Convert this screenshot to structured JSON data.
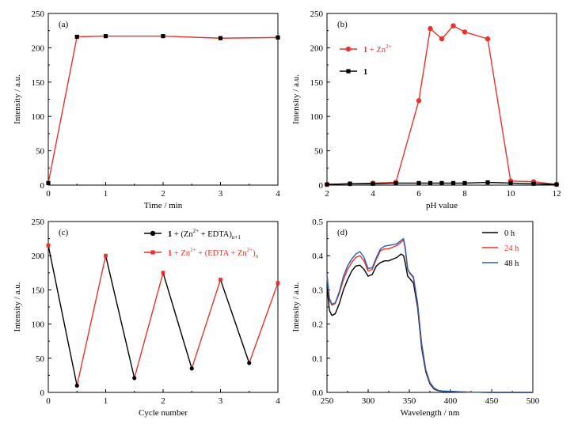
{
  "chart_data": [
    {
      "panel_label": "(a)",
      "type": "line",
      "xlabel": "Time / min",
      "ylabel": "Intensity / a.u.",
      "xlim": [
        0,
        4
      ],
      "ylim": [
        0,
        250
      ],
      "xticks": [
        "0",
        "1",
        "2",
        "3",
        "4"
      ],
      "yticks": [
        "0",
        "50",
        "100",
        "150",
        "200",
        "250"
      ],
      "series": [
        {
          "color": "#e8322b",
          "marker": "square",
          "marker_color": "#000000",
          "x": [
            0,
            0.5,
            1,
            2,
            3,
            4
          ],
          "y": [
            3,
            216,
            217,
            217,
            214,
            215
          ]
        }
      ]
    },
    {
      "panel_label": "(b)",
      "type": "line",
      "xlabel": "pH value",
      "ylabel": "Intensity / a.u.",
      "xlim": [
        2,
        12
      ],
      "ylim": [
        0,
        250
      ],
      "xticks": [
        "2",
        "4",
        "6",
        "8",
        "10",
        "12"
      ],
      "yticks": [
        "0",
        "50",
        "100",
        "150",
        "200",
        "250"
      ],
      "legend": {
        "placement": "upper-left",
        "items": [
          {
            "bold": "1",
            "rest": " + Zn",
            "sup": "2+",
            "color": "#e8322b",
            "marker": "circle"
          },
          {
            "bold": "1",
            "rest": "",
            "sup": "",
            "color": "#000000",
            "marker": "square"
          }
        ]
      },
      "series": [
        {
          "name": "1 + Zn2+",
          "color": "#e8322b",
          "marker": "circle",
          "x": [
            2,
            3,
            4,
            5,
            6,
            6.5,
            7,
            7.5,
            8,
            9,
            10,
            11,
            12
          ],
          "y": [
            1,
            2,
            3,
            4,
            123,
            228,
            213,
            232,
            223,
            213,
            6,
            5,
            1
          ]
        },
        {
          "name": "1",
          "color": "#000000",
          "marker": "square",
          "x": [
            2,
            3,
            4,
            5,
            6,
            6.5,
            7,
            7.5,
            8,
            9,
            10,
            11,
            12
          ],
          "y": [
            1,
            2,
            2,
            3,
            3,
            3,
            3,
            3,
            3,
            4,
            3,
            2,
            1
          ]
        }
      ]
    },
    {
      "panel_label": "(c)",
      "type": "line",
      "xlabel": "Cycle number",
      "ylabel": "Intensity / a.u.",
      "xlim": [
        0,
        4
      ],
      "ylim": [
        0,
        250
      ],
      "xticks": [
        "0",
        "1",
        "2",
        "3",
        "4"
      ],
      "yticks": [
        "0",
        "50",
        "100",
        "150",
        "200",
        "250"
      ],
      "legend": {
        "placement": "upper-right",
        "items": [
          {
            "bold": "1",
            "rest": " + (Zn",
            "sup": "2+",
            "rest2": " + EDTA)",
            "sub": "n+1",
            "color": "#000000",
            "marker": "circle"
          },
          {
            "bold": "1",
            "rest": " + Zn",
            "sup": "2+",
            "rest2": " + (EDTA + Zn",
            "sup2": "2+",
            "rest3": ")",
            "sub": "n",
            "color": "#e8322b",
            "marker": "square"
          }
        ]
      },
      "x": [
        0,
        0.5,
        1,
        1.5,
        2,
        2.5,
        3,
        3.5,
        4
      ],
      "y": [
        215,
        10,
        200,
        21,
        175,
        35,
        165,
        43,
        160
      ],
      "falling_color": "#000000",
      "rising_color": "#e8322b"
    },
    {
      "panel_label": "(d)",
      "type": "line",
      "xlabel": "Wavelength / nm",
      "ylabel": "Intensity / a.u.",
      "xlim": [
        250,
        500
      ],
      "ylim": [
        0,
        0.5
      ],
      "xticks": [
        "250",
        "300",
        "350",
        "400",
        "450",
        "500"
      ],
      "yticks": [
        "0.0",
        "0.1",
        "0.2",
        "0.3",
        "0.4",
        "0.5"
      ],
      "legend": {
        "placement": "upper-right",
        "items": [
          {
            "label": "0 h",
            "color": "#000000"
          },
          {
            "label": "24 h",
            "color": "#e8322b"
          },
          {
            "label": "48 h",
            "color": "#2e5eab"
          }
        ]
      },
      "series": [
        {
          "name": "0 h",
          "color": "#000000",
          "x": [
            250,
            253,
            256,
            260,
            265,
            270,
            275,
            280,
            285,
            290,
            295,
            300,
            305,
            310,
            315,
            320,
            325,
            330,
            335,
            340,
            343,
            345,
            348,
            350,
            355,
            360,
            365,
            370,
            375,
            380,
            385,
            390,
            400,
            420,
            450,
            500
          ],
          "y": [
            0.31,
            0.24,
            0.225,
            0.23,
            0.26,
            0.3,
            0.33,
            0.355,
            0.37,
            0.372,
            0.36,
            0.34,
            0.345,
            0.37,
            0.38,
            0.385,
            0.385,
            0.39,
            0.395,
            0.405,
            0.4,
            0.38,
            0.34,
            0.335,
            0.32,
            0.25,
            0.13,
            0.06,
            0.025,
            0.01,
            0.005,
            0.003,
            0.002,
            0.001,
            0.0,
            0.0
          ]
        },
        {
          "name": "24 h",
          "color": "#e8322b",
          "x": [
            250,
            253,
            256,
            260,
            265,
            270,
            275,
            280,
            285,
            290,
            295,
            300,
            305,
            310,
            315,
            320,
            325,
            330,
            335,
            340,
            343,
            345,
            348,
            350,
            355,
            360,
            365,
            370,
            375,
            380,
            385,
            390,
            400,
            420,
            450,
            500
          ],
          "y": [
            0.34,
            0.27,
            0.255,
            0.26,
            0.29,
            0.33,
            0.36,
            0.38,
            0.395,
            0.4,
            0.385,
            0.355,
            0.36,
            0.39,
            0.415,
            0.42,
            0.42,
            0.425,
            0.43,
            0.44,
            0.445,
            0.42,
            0.36,
            0.35,
            0.335,
            0.26,
            0.14,
            0.065,
            0.028,
            0.012,
            0.006,
            0.004,
            0.003,
            0.001,
            0.0,
            0.0
          ]
        },
        {
          "name": "48 h",
          "color": "#2e5eab",
          "x": [
            250,
            253,
            256,
            260,
            265,
            270,
            275,
            280,
            285,
            290,
            295,
            300,
            305,
            310,
            315,
            320,
            325,
            330,
            335,
            340,
            343,
            345,
            348,
            350,
            355,
            360,
            365,
            370,
            375,
            380,
            385,
            390,
            400,
            420,
            450,
            500
          ],
          "y": [
            0.345,
            0.275,
            0.258,
            0.262,
            0.295,
            0.34,
            0.37,
            0.39,
            0.405,
            0.412,
            0.395,
            0.362,
            0.365,
            0.395,
            0.42,
            0.428,
            0.43,
            0.432,
            0.435,
            0.445,
            0.45,
            0.425,
            0.362,
            0.352,
            0.338,
            0.262,
            0.142,
            0.066,
            0.029,
            0.013,
            0.006,
            0.004,
            0.003,
            0.001,
            0.0,
            0.0
          ]
        }
      ]
    }
  ]
}
